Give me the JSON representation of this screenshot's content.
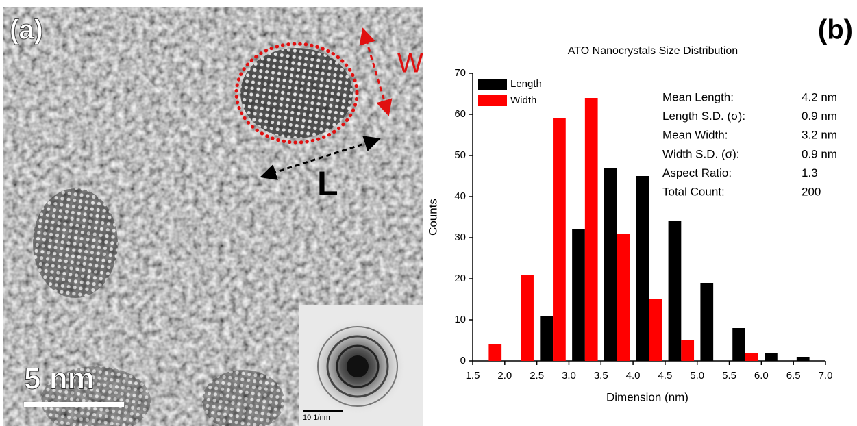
{
  "panel_a": {
    "label": "(a)",
    "width_label": "W",
    "length_label": "L",
    "scale_bar": "5 nm",
    "inset_scale": "10 1/nm"
  },
  "panel_b_label": "(b)",
  "chart_data": {
    "type": "bar",
    "title": "ATO Nanocrystals Size Distribution",
    "x_label": "Dimension (nm)",
    "y_label": "Counts",
    "xlim": [
      1.5,
      7.0
    ],
    "xticks": [
      1.5,
      {
        "value": 2,
        "label": "2.0"
      },
      2.5,
      {
        "value": 3,
        "label": "3.0"
      },
      3.5,
      {
        "value": 4,
        "label": "4.0"
      },
      4.5,
      {
        "value": 5,
        "label": "5.0"
      },
      5.5,
      {
        "value": 6,
        "label": "6.0"
      },
      6.5,
      {
        "value": 7,
        "label": "7.0"
      }
    ],
    "ylim": [
      0,
      70
    ],
    "yticks": [
      0,
      10,
      20,
      30,
      40,
      50,
      60,
      70
    ],
    "bar_width": 0.2,
    "legend": "top-left",
    "series": [
      {
        "name": "Length",
        "color": "#000000",
        "x": [
          2.65,
          3.15,
          3.65,
          4.15,
          4.65,
          5.15,
          5.65,
          6.15,
          6.65
        ],
        "values": [
          11,
          32,
          47,
          45,
          34,
          19,
          8,
          2,
          1
        ]
      },
      {
        "name": "Width",
        "color": "#ff0000",
        "x": [
          1.85,
          2.35,
          2.85,
          3.35,
          3.85,
          4.35,
          4.85,
          5.85
        ],
        "values": [
          4,
          21,
          59,
          64,
          31,
          15,
          5,
          2
        ]
      }
    ],
    "stats": [
      [
        "Mean Length:",
        "4.2 nm"
      ],
      [
        "Length S.D. (σ):",
        "0.9 nm"
      ],
      [
        "Mean Width:",
        "3.2 nm"
      ],
      [
        "Width S.D. (σ):",
        "0.9 nm"
      ],
      [
        "Aspect Ratio:",
        "1.3"
      ],
      [
        "Total Count:",
        "200"
      ]
    ]
  }
}
